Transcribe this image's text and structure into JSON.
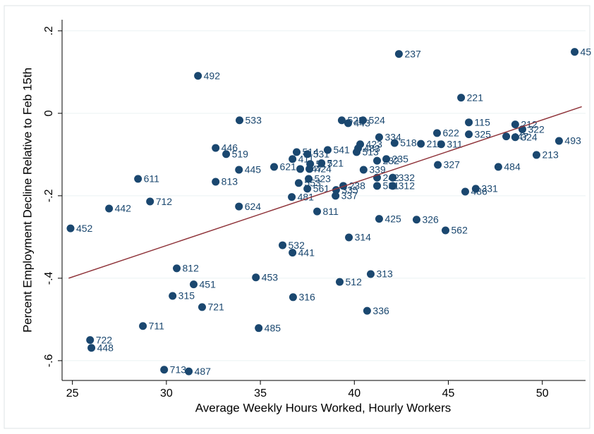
{
  "chart_data": {
    "type": "scatter",
    "x_label": "Average Weekly Hours Worked, Hourly Workers",
    "y_label": "Percent Employment Decline Relative to Feb 15th",
    "xlim": [
      24.6,
      52.3
    ],
    "ylim": [
      -0.648,
      0.227
    ],
    "xticks": [
      25,
      30,
      35,
      40,
      45,
      50
    ],
    "yticks": [
      {
        "value": -0.6,
        "label": "-.6"
      },
      {
        "value": -0.4,
        "label": "-.4"
      },
      {
        "value": -0.2,
        "label": "-.2"
      },
      0,
      {
        "value": 0.2,
        "label": ".2"
      }
    ],
    "grid": true,
    "color": "#1a476f",
    "fit_color": "#90353b",
    "fit": {
      "x": [
        24.8,
        52.1
      ],
      "y": [
        -0.4,
        0.016
      ]
    },
    "points": [
      {
        "label": "452",
        "x": 24.9,
        "y": -0.279
      },
      {
        "label": "442",
        "x": 26.95,
        "y": -0.231
      },
      {
        "label": "611",
        "x": 28.49,
        "y": -0.159
      },
      {
        "label": "712",
        "x": 29.13,
        "y": -0.214
      },
      {
        "label": "722",
        "x": 25.94,
        "y": -0.55
      },
      {
        "label": "448",
        "x": 26.01,
        "y": -0.569
      },
      {
        "label": "711",
        "x": 28.75,
        "y": -0.516
      },
      {
        "label": "713",
        "x": 29.88,
        "y": -0.622
      },
      {
        "label": "487",
        "x": 31.19,
        "y": -0.626
      },
      {
        "label": "315",
        "x": 30.33,
        "y": -0.443
      },
      {
        "label": "812",
        "x": 30.55,
        "y": -0.376
      },
      {
        "label": "451",
        "x": 31.45,
        "y": -0.415
      },
      {
        "label": "721",
        "x": 31.9,
        "y": -0.47
      },
      {
        "label": "492",
        "x": 31.68,
        "y": 0.091
      },
      {
        "label": "446",
        "x": 32.62,
        "y": -0.084
      },
      {
        "label": "519",
        "x": 33.18,
        "y": -0.099
      },
      {
        "label": "813",
        "x": 32.62,
        "y": -0.166
      },
      {
        "label": "445",
        "x": 33.86,
        "y": -0.137
      },
      {
        "label": "533",
        "x": 33.89,
        "y": -0.017
      },
      {
        "label": "624",
        "x": 33.86,
        "y": -0.226
      },
      {
        "label": "453",
        "x": 34.76,
        "y": -0.398
      },
      {
        "label": "485",
        "x": 34.91,
        "y": -0.521
      },
      {
        "label": "532",
        "x": 36.18,
        "y": -0.32
      },
      {
        "label": "441",
        "x": 36.71,
        "y": -0.338
      },
      {
        "label": "316",
        "x": 36.74,
        "y": -0.446
      },
      {
        "label": "621",
        "x": 35.73,
        "y": -0.13
      },
      {
        "label": "481",
        "x": 36.67,
        "y": -0.203
      },
      {
        "label": "512",
        "x": 39.22,
        "y": -0.409
      },
      {
        "label": "313",
        "x": 40.87,
        "y": -0.39
      },
      {
        "label": "336",
        "x": 40.68,
        "y": -0.479
      },
      {
        "label": "314",
        "x": 39.71,
        "y": -0.301
      },
      {
        "label": "425",
        "x": 41.32,
        "y": -0.256
      },
      {
        "label": "326",
        "x": 43.31,
        "y": -0.258
      },
      {
        "label": "562",
        "x": 44.85,
        "y": -0.284
      },
      {
        "label": "811",
        "x": 38.02,
        "y": -0.238
      },
      {
        "label": "337",
        "x": 39.0,
        "y": -0.2
      },
      {
        "label": "237",
        "x": 42.37,
        "y": 0.144
      },
      {
        "label": "221",
        "x": 45.68,
        "y": 0.038
      },
      {
        "label": "45",
        "x": 51.72,
        "y": 0.149
      },
      {
        "label": "115",
        "x": 46.09,
        "y": -0.022
      },
      {
        "label": "622",
        "x": 44.4,
        "y": -0.048
      },
      {
        "label": "325",
        "x": 46.09,
        "y": -0.051
      },
      {
        "label": "212",
        "x": 48.56,
        "y": -0.027
      },
      {
        "label": "322",
        "x": 48.94,
        "y": -0.039
      },
      {
        "label": "447",
        "x": 48.08,
        "y": -0.056
      },
      {
        "label": "324",
        "x": 48.56,
        "y": -0.058
      },
      {
        "label": "493",
        "x": 50.89,
        "y": -0.067
      },
      {
        "label": "213",
        "x": 49.69,
        "y": -0.101
      },
      {
        "label": "484",
        "x": 47.66,
        "y": -0.13
      },
      {
        "label": "331",
        "x": 46.46,
        "y": -0.183
      },
      {
        "label": "486",
        "x": 45.9,
        "y": -0.19
      },
      {
        "label": "311",
        "x": 44.62,
        "y": -0.075
      },
      {
        "label": "211",
        "x": 43.54,
        "y": -0.074
      },
      {
        "label": "327",
        "x": 44.44,
        "y": -0.125
      },
      {
        "label": "518",
        "x": 42.14,
        "y": -0.072
      },
      {
        "label": "334",
        "x": 41.32,
        "y": -0.058
      },
      {
        "label": "524",
        "x": 40.46,
        "y": -0.017
      },
      {
        "label": "523",
        "x": 39.33,
        "y": -0.017
      },
      {
        "label": "443",
        "x": 39.67,
        "y": -0.024
      },
      {
        "label": "541",
        "x": 38.58,
        "y": -0.089
      },
      {
        "label": "339",
        "x": 40.49,
        "y": -0.137
      },
      {
        "label": "332",
        "x": 42.04,
        "y": -0.156
      },
      {
        "label": "312",
        "x": 42.04,
        "y": -0.176
      },
      {
        "label": "235",
        "x": 41.7,
        "y": -0.111
      },
      {
        "label": "232",
        "x": 41.21,
        "y": -0.115
      },
      {
        "label": "242",
        "x": 41.21,
        "y": -0.156
      },
      {
        "label": "531",
        "x": 41.21,
        "y": -0.176
      },
      {
        "label": "238",
        "x": 39.41,
        "y": -0.176
      },
      {
        "label": "335",
        "x": 39.03,
        "y": -0.186
      },
      {
        "label": "517",
        "x": 37.65,
        "y": -0.123
      },
      {
        "label": "424",
        "x": 37.61,
        "y": -0.135
      },
      {
        "label": "514",
        "x": 36.93,
        "y": -0.094
      },
      {
        "label": "531",
        "x": 37.5,
        "y": -0.099
      },
      {
        "label": "411",
        "x": 36.71,
        "y": -0.111
      },
      {
        "label": "447",
        "x": 37.12,
        "y": -0.135
      },
      {
        "label": "523",
        "x": 37.57,
        "y": -0.159
      },
      {
        "label": "553",
        "x": 37.04,
        "y": -0.169
      },
      {
        "label": "561",
        "x": 37.5,
        "y": -0.183
      },
      {
        "label": "521",
        "x": 38.25,
        "y": -0.121
      },
      {
        "label": "483",
        "x": 40.2,
        "y": -0.085
      },
      {
        "label": "423",
        "x": 40.31,
        "y": -0.075
      },
      {
        "label": "513",
        "x": 40.12,
        "y": -0.094
      }
    ]
  }
}
